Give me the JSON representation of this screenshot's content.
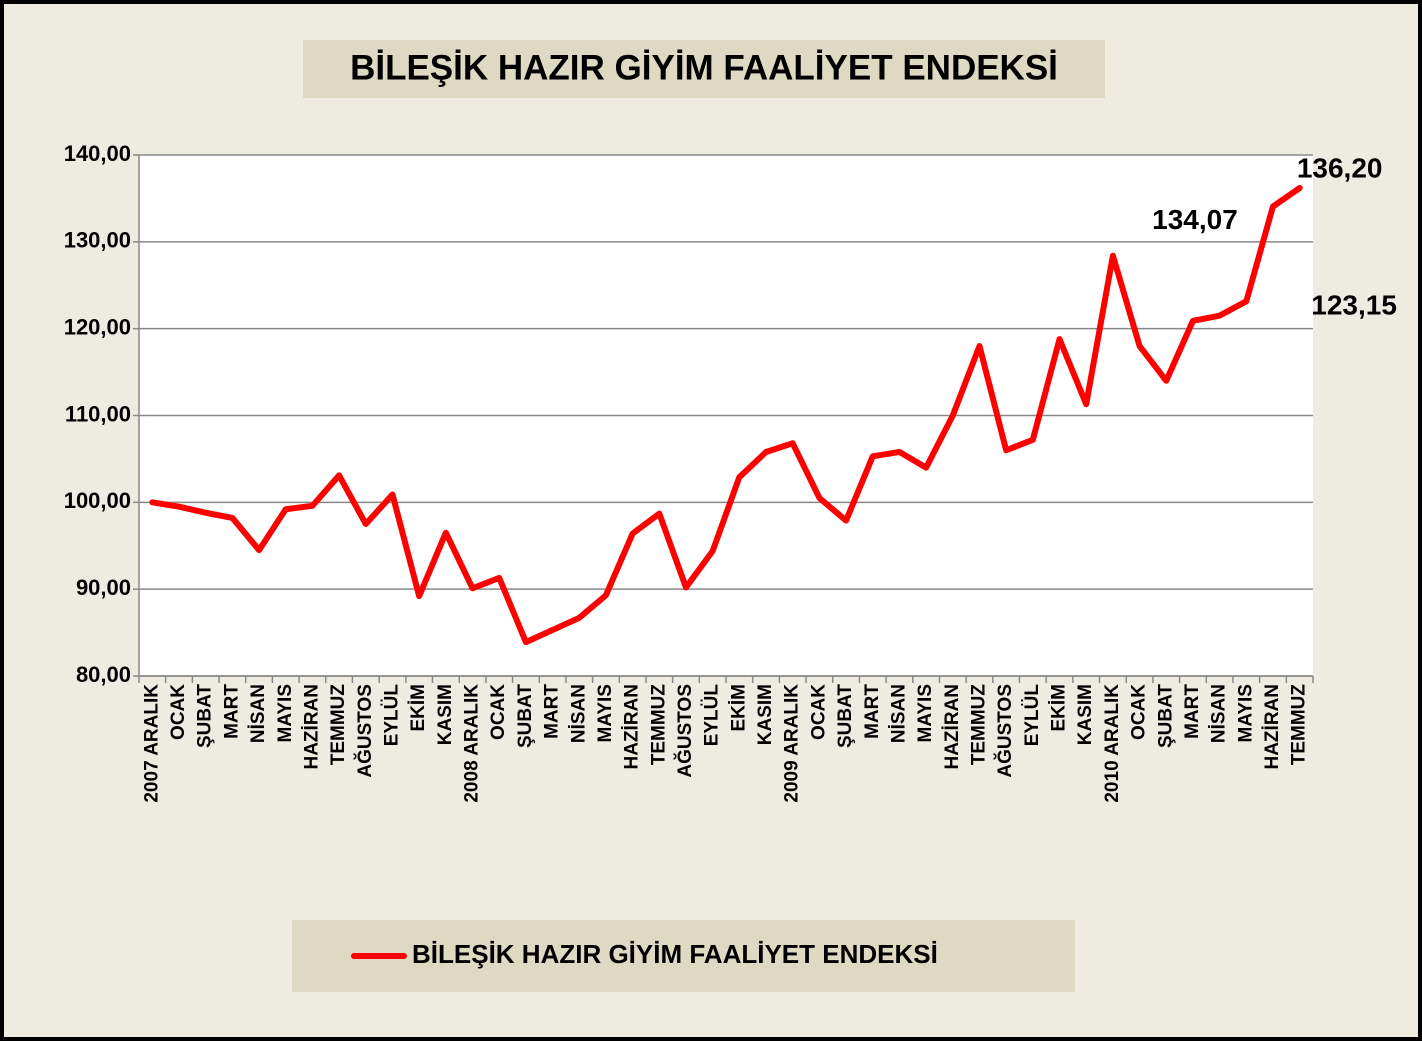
{
  "chart_data": {
    "type": "line",
    "title": "BİLEŞİK HAZIR GİYİM FAALİYET ENDEKSİ",
    "categories": [
      "2007 ARALIK",
      "OCAK",
      "ŞUBAT",
      "MART",
      "NİSAN",
      "MAYIS",
      "HAZİRAN",
      "TEMMUZ",
      "AĞUSTOS",
      "EYLÜL",
      "EKİM",
      "KASIM",
      "2008 ARALIK",
      "OCAK",
      "ŞUBAT",
      "MART",
      "NİSAN",
      "MAYIS",
      "HAZİRAN",
      "TEMMUZ",
      "AĞUSTOS",
      "EYLÜL",
      "EKİM",
      "KASIM",
      "2009 ARALIK",
      "OCAK",
      "ŞUBAT",
      "MART",
      "NİSAN",
      "MAYIS",
      "HAZİRAN",
      "TEMMUZ",
      "AĞUSTOS",
      "EYLÜL",
      "EKİM",
      "KASIM",
      "2010 ARALIK",
      "OCAK",
      "ŞUBAT",
      "MART",
      "NİSAN",
      "MAYIS",
      "HAZİRAN",
      "TEMMUZ"
    ],
    "series": [
      {
        "name": "BİLEŞİK HAZIR GİYİM FAALİYET ENDEKSİ",
        "color": "#ff0000",
        "values": [
          100.0,
          99.5,
          98.8,
          98.2,
          94.5,
          99.2,
          99.6,
          103.1,
          97.5,
          100.9,
          89.2,
          96.5,
          90.1,
          91.3,
          83.9,
          85.3,
          86.7,
          89.3,
          96.4,
          98.7,
          90.2,
          94.4,
          102.9,
          105.8,
          106.8,
          100.5,
          97.9,
          105.3,
          105.8,
          104.0,
          110.0,
          118.0,
          106.0,
          107.2,
          118.8,
          111.3,
          128.4,
          118.0,
          114.0,
          120.9,
          121.5,
          123.15,
          134.07,
          136.2
        ],
        "value_labels": [
          null,
          null,
          null,
          null,
          null,
          null,
          null,
          null,
          null,
          null,
          null,
          null,
          null,
          null,
          null,
          null,
          null,
          null,
          null,
          null,
          null,
          null,
          null,
          null,
          null,
          null,
          null,
          null,
          null,
          null,
          null,
          null,
          null,
          null,
          null,
          null,
          null,
          null,
          null,
          null,
          null,
          "123,15",
          "134,07",
          "136,20"
        ]
      }
    ],
    "ylim": [
      80,
      140
    ],
    "yticks": [
      {
        "value": 80,
        "label": "80,00"
      },
      {
        "value": 90,
        "label": "90,00"
      },
      {
        "value": 100,
        "label": "100,00"
      },
      {
        "value": 110,
        "label": "110,00"
      },
      {
        "value": 120,
        "label": "120,00"
      },
      {
        "value": 130,
        "label": "130,00"
      },
      {
        "value": 140,
        "label": "140,00"
      }
    ],
    "grid": true,
    "legend": "bottom"
  }
}
